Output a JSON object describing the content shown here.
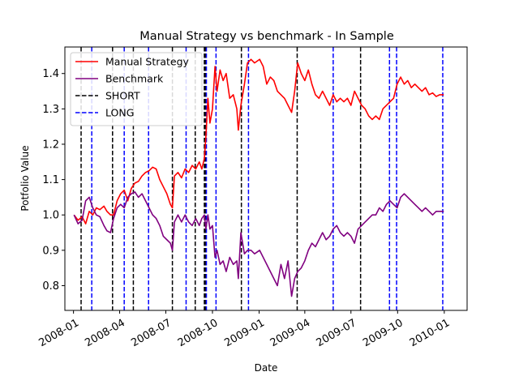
{
  "chart_data": {
    "type": "line",
    "title": "Manual Strategy vs benchmark - In Sample",
    "xlabel": "Date",
    "ylabel": "Potfolio Value",
    "xlim": [
      "2007-12-15",
      "2010-02-15"
    ],
    "ylim": [
      0.73,
      1.475
    ],
    "xticks": [
      "2008-01",
      "2008-04",
      "2008-07",
      "2008-10",
      "2009-01",
      "2009-04",
      "2009-07",
      "2009-10",
      "2010-01"
    ],
    "yticks": [
      "0.8",
      "0.9",
      "1.0",
      "1.1",
      "1.2",
      "1.3",
      "1.4"
    ],
    "legend_position": "upper-left",
    "series": [
      {
        "name": "Manual Strategy",
        "color": "#ff0000",
        "points": [
          [
            "2008-01-02",
            1.0
          ],
          [
            "2008-01-10",
            0.985
          ],
          [
            "2008-01-18",
            0.995
          ],
          [
            "2008-01-25",
            0.975
          ],
          [
            "2008-02-01",
            1.01
          ],
          [
            "2008-02-08",
            1.0
          ],
          [
            "2008-02-15",
            1.02
          ],
          [
            "2008-02-22",
            1.015
          ],
          [
            "2008-03-01",
            1.025
          ],
          [
            "2008-03-07",
            1.01
          ],
          [
            "2008-03-14",
            1.0
          ],
          [
            "2008-03-20",
            1.0
          ],
          [
            "2008-03-27",
            1.04
          ],
          [
            "2008-04-03",
            1.06
          ],
          [
            "2008-04-10",
            1.07
          ],
          [
            "2008-04-17",
            1.04
          ],
          [
            "2008-04-24",
            1.075
          ],
          [
            "2008-05-01",
            1.09
          ],
          [
            "2008-05-08",
            1.095
          ],
          [
            "2008-05-15",
            1.11
          ],
          [
            "2008-05-22",
            1.12
          ],
          [
            "2008-05-29",
            1.125
          ],
          [
            "2008-06-05",
            1.135
          ],
          [
            "2008-06-12",
            1.13
          ],
          [
            "2008-06-19",
            1.1
          ],
          [
            "2008-06-26",
            1.08
          ],
          [
            "2008-07-03",
            1.06
          ],
          [
            "2008-07-10",
            1.03
          ],
          [
            "2008-07-14",
            1.02
          ],
          [
            "2008-07-18",
            1.11
          ],
          [
            "2008-07-25",
            1.12
          ],
          [
            "2008-08-01",
            1.105
          ],
          [
            "2008-08-08",
            1.13
          ],
          [
            "2008-08-15",
            1.12
          ],
          [
            "2008-08-22",
            1.14
          ],
          [
            "2008-08-29",
            1.13
          ],
          [
            "2008-09-05",
            1.15
          ],
          [
            "2008-09-10",
            1.13
          ],
          [
            "2008-09-15",
            1.16
          ],
          [
            "2008-09-18",
            1.22
          ],
          [
            "2008-09-22",
            1.33
          ],
          [
            "2008-09-26",
            1.26
          ],
          [
            "2008-10-01",
            1.3
          ],
          [
            "2008-10-06",
            1.42
          ],
          [
            "2008-10-10",
            1.35
          ],
          [
            "2008-10-16",
            1.41
          ],
          [
            "2008-10-22",
            1.38
          ],
          [
            "2008-10-28",
            1.4
          ],
          [
            "2008-11-04",
            1.33
          ],
          [
            "2008-11-11",
            1.34
          ],
          [
            "2008-11-18",
            1.3
          ],
          [
            "2008-11-21",
            1.24
          ],
          [
            "2008-11-26",
            1.31
          ],
          [
            "2008-12-03",
            1.37
          ],
          [
            "2008-12-09",
            1.43
          ],
          [
            "2008-12-16",
            1.44
          ],
          [
            "2008-12-23",
            1.43
          ],
          [
            "2009-01-02",
            1.44
          ],
          [
            "2009-01-09",
            1.42
          ],
          [
            "2009-01-16",
            1.37
          ],
          [
            "2009-01-23",
            1.39
          ],
          [
            "2009-01-30",
            1.38
          ],
          [
            "2009-02-06",
            1.35
          ],
          [
            "2009-02-13",
            1.34
          ],
          [
            "2009-02-20",
            1.33
          ],
          [
            "2009-02-27",
            1.31
          ],
          [
            "2009-03-06",
            1.29
          ],
          [
            "2009-03-12",
            1.35
          ],
          [
            "2009-03-18",
            1.43
          ],
          [
            "2009-03-25",
            1.4
          ],
          [
            "2009-04-01",
            1.38
          ],
          [
            "2009-04-08",
            1.41
          ],
          [
            "2009-04-15",
            1.37
          ],
          [
            "2009-04-22",
            1.34
          ],
          [
            "2009-04-29",
            1.33
          ],
          [
            "2009-05-06",
            1.35
          ],
          [
            "2009-05-13",
            1.33
          ],
          [
            "2009-05-20",
            1.31
          ],
          [
            "2009-05-27",
            1.34
          ],
          [
            "2009-06-03",
            1.32
          ],
          [
            "2009-06-10",
            1.33
          ],
          [
            "2009-06-17",
            1.32
          ],
          [
            "2009-06-24",
            1.33
          ],
          [
            "2009-07-01",
            1.31
          ],
          [
            "2009-07-08",
            1.35
          ],
          [
            "2009-07-15",
            1.33
          ],
          [
            "2009-07-22",
            1.31
          ],
          [
            "2009-07-29",
            1.3
          ],
          [
            "2009-08-05",
            1.28
          ],
          [
            "2009-08-12",
            1.27
          ],
          [
            "2009-08-19",
            1.28
          ],
          [
            "2009-08-26",
            1.27
          ],
          [
            "2009-09-02",
            1.3
          ],
          [
            "2009-09-09",
            1.31
          ],
          [
            "2009-09-16",
            1.32
          ],
          [
            "2009-09-23",
            1.33
          ],
          [
            "2009-09-30",
            1.37
          ],
          [
            "2009-10-07",
            1.39
          ],
          [
            "2009-10-14",
            1.37
          ],
          [
            "2009-10-21",
            1.38
          ],
          [
            "2009-10-28",
            1.36
          ],
          [
            "2009-11-04",
            1.37
          ],
          [
            "2009-11-11",
            1.36
          ],
          [
            "2009-11-18",
            1.35
          ],
          [
            "2009-11-25",
            1.36
          ],
          [
            "2009-12-02",
            1.34
          ],
          [
            "2009-12-09",
            1.345
          ],
          [
            "2009-12-16",
            1.335
          ],
          [
            "2009-12-23",
            1.34
          ],
          [
            "2009-12-31",
            1.34
          ]
        ]
      },
      {
        "name": "Benchmark",
        "color": "#800080",
        "points": [
          [
            "2008-01-02",
            1.0
          ],
          [
            "2008-01-10",
            0.975
          ],
          [
            "2008-01-18",
            0.985
          ],
          [
            "2008-01-25",
            1.04
          ],
          [
            "2008-02-01",
            1.05
          ],
          [
            "2008-02-08",
            1.02
          ],
          [
            "2008-02-15",
            1.0
          ],
          [
            "2008-02-22",
            0.995
          ],
          [
            "2008-03-01",
            0.97
          ],
          [
            "2008-03-07",
            0.955
          ],
          [
            "2008-03-14",
            0.95
          ],
          [
            "2008-03-20",
            0.99
          ],
          [
            "2008-03-27",
            1.02
          ],
          [
            "2008-04-03",
            1.03
          ],
          [
            "2008-04-10",
            1.02
          ],
          [
            "2008-04-17",
            1.05
          ],
          [
            "2008-04-24",
            1.06
          ],
          [
            "2008-05-01",
            1.065
          ],
          [
            "2008-05-08",
            1.05
          ],
          [
            "2008-05-15",
            1.06
          ],
          [
            "2008-05-22",
            1.04
          ],
          [
            "2008-05-29",
            1.02
          ],
          [
            "2008-06-05",
            1.0
          ],
          [
            "2008-06-12",
            0.99
          ],
          [
            "2008-06-19",
            0.97
          ],
          [
            "2008-06-26",
            0.94
          ],
          [
            "2008-07-03",
            0.93
          ],
          [
            "2008-07-10",
            0.92
          ],
          [
            "2008-07-14",
            0.9
          ],
          [
            "2008-07-18",
            0.98
          ],
          [
            "2008-07-25",
            1.0
          ],
          [
            "2008-08-01",
            0.98
          ],
          [
            "2008-08-08",
            1.0
          ],
          [
            "2008-08-15",
            0.98
          ],
          [
            "2008-08-22",
            0.97
          ],
          [
            "2008-08-29",
            0.99
          ],
          [
            "2008-09-05",
            0.97
          ],
          [
            "2008-09-10",
            0.99
          ],
          [
            "2008-09-15",
            1.0
          ],
          [
            "2008-09-18",
            0.96
          ],
          [
            "2008-09-22",
            1.0
          ],
          [
            "2008-09-26",
            0.96
          ],
          [
            "2008-10-01",
            0.97
          ],
          [
            "2008-10-06",
            0.88
          ],
          [
            "2008-10-10",
            0.9
          ],
          [
            "2008-10-16",
            0.86
          ],
          [
            "2008-10-22",
            0.87
          ],
          [
            "2008-10-28",
            0.84
          ],
          [
            "2008-11-04",
            0.88
          ],
          [
            "2008-11-11",
            0.86
          ],
          [
            "2008-11-18",
            0.87
          ],
          [
            "2008-11-21",
            0.82
          ],
          [
            "2008-11-26",
            0.95
          ],
          [
            "2008-12-03",
            0.89
          ],
          [
            "2008-12-09",
            0.9
          ],
          [
            "2008-12-16",
            0.9
          ],
          [
            "2008-12-23",
            0.89
          ],
          [
            "2009-01-02",
            0.9
          ],
          [
            "2009-01-09",
            0.88
          ],
          [
            "2009-01-16",
            0.86
          ],
          [
            "2009-01-23",
            0.84
          ],
          [
            "2009-01-30",
            0.82
          ],
          [
            "2009-02-06",
            0.8
          ],
          [
            "2009-02-13",
            0.86
          ],
          [
            "2009-02-20",
            0.82
          ],
          [
            "2009-02-27",
            0.87
          ],
          [
            "2009-03-06",
            0.77
          ],
          [
            "2009-03-12",
            0.82
          ],
          [
            "2009-03-18",
            0.84
          ],
          [
            "2009-03-25",
            0.85
          ],
          [
            "2009-04-01",
            0.87
          ],
          [
            "2009-04-08",
            0.9
          ],
          [
            "2009-04-15",
            0.92
          ],
          [
            "2009-04-22",
            0.91
          ],
          [
            "2009-04-29",
            0.93
          ],
          [
            "2009-05-06",
            0.95
          ],
          [
            "2009-05-13",
            0.93
          ],
          [
            "2009-05-20",
            0.94
          ],
          [
            "2009-05-27",
            0.96
          ],
          [
            "2009-06-03",
            0.97
          ],
          [
            "2009-06-10",
            0.95
          ],
          [
            "2009-06-17",
            0.94
          ],
          [
            "2009-06-24",
            0.95
          ],
          [
            "2009-07-01",
            0.94
          ],
          [
            "2009-07-08",
            0.92
          ],
          [
            "2009-07-15",
            0.96
          ],
          [
            "2009-07-22",
            0.97
          ],
          [
            "2009-07-29",
            0.98
          ],
          [
            "2009-08-05",
            0.99
          ],
          [
            "2009-08-12",
            1.0
          ],
          [
            "2009-08-19",
            1.0
          ],
          [
            "2009-08-26",
            1.02
          ],
          [
            "2009-09-02",
            1.01
          ],
          [
            "2009-09-09",
            1.03
          ],
          [
            "2009-09-16",
            1.04
          ],
          [
            "2009-09-23",
            1.03
          ],
          [
            "2009-09-30",
            1.02
          ],
          [
            "2009-10-07",
            1.05
          ],
          [
            "2009-10-14",
            1.06
          ],
          [
            "2009-10-21",
            1.05
          ],
          [
            "2009-10-28",
            1.04
          ],
          [
            "2009-11-04",
            1.03
          ],
          [
            "2009-11-11",
            1.02
          ],
          [
            "2009-11-18",
            1.01
          ],
          [
            "2009-11-25",
            1.02
          ],
          [
            "2009-12-02",
            1.01
          ],
          [
            "2009-12-09",
            1.0
          ],
          [
            "2009-12-16",
            1.01
          ],
          [
            "2009-12-23",
            1.01
          ],
          [
            "2009-12-31",
            1.01
          ]
        ]
      }
    ],
    "vlines": [
      {
        "name": "SHORT",
        "color": "#000000",
        "dates": [
          "2008-01-16",
          "2008-03-18",
          "2008-04-28",
          "2008-07-14",
          "2008-08-28",
          "2008-09-15",
          "2008-09-17",
          "2008-11-27",
          "2009-03-17",
          "2009-07-20"
        ]
      },
      {
        "name": "LONG",
        "color": "#0000ff",
        "dates": [
          "2008-02-06",
          "2008-04-10",
          "2008-05-28",
          "2008-08-10",
          "2008-09-19",
          "2008-10-08",
          "2008-12-11",
          "2009-05-27",
          "2009-09-15",
          "2009-09-29",
          "2009-12-29"
        ]
      }
    ]
  }
}
